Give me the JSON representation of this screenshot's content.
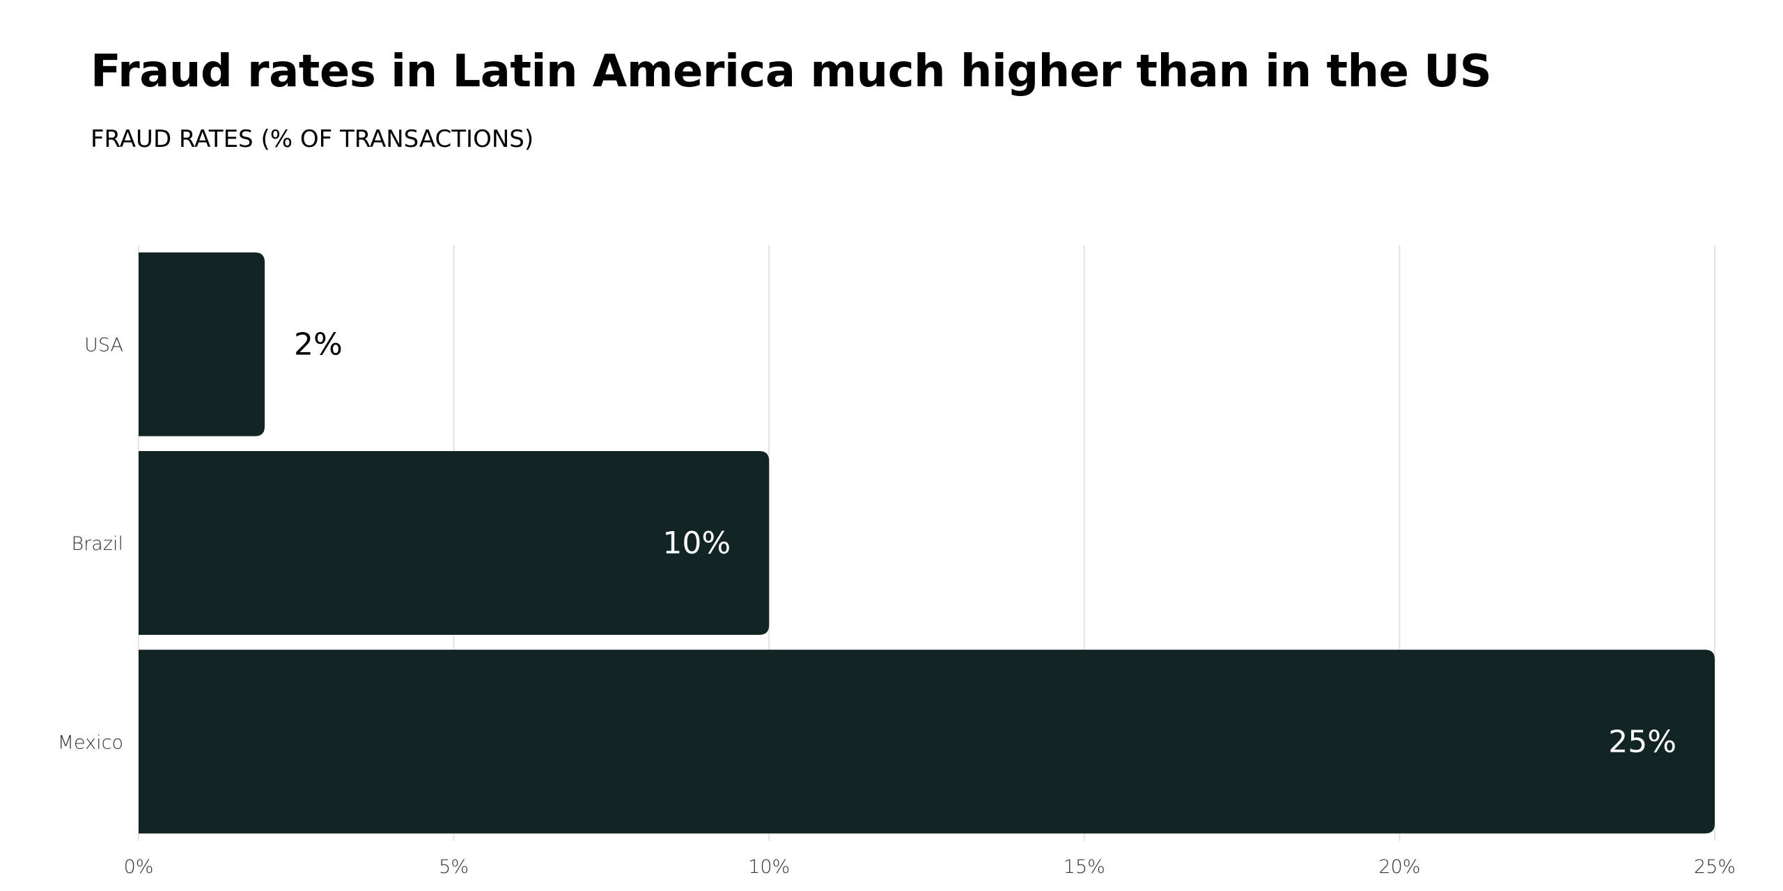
{
  "chart_data": {
    "type": "bar",
    "orientation": "horizontal",
    "title": "Fraud rates in Latin America much higher than in the US",
    "subtitle": "FRAUD RATES (% OF TRANSACTIONS)",
    "categories": [
      "USA",
      "Brazil",
      "Mexico"
    ],
    "values": [
      2,
      10,
      25
    ],
    "data_labels": [
      "2%",
      "10%",
      "25%"
    ],
    "xlim": [
      0,
      25
    ],
    "x_ticks": [
      0,
      5,
      10,
      15,
      20,
      25
    ],
    "x_tick_labels": [
      "0%",
      "5%",
      "10%",
      "15%",
      "20%",
      "25%"
    ],
    "xlabel": "",
    "ylabel": "",
    "grid": "vertical",
    "legend": "none",
    "colors": {
      "bar": "#122524",
      "gridline": "#e3e3e3",
      "label_inside": "#ffffff",
      "label_outside": "#000000",
      "axis_text": "#333333"
    }
  }
}
